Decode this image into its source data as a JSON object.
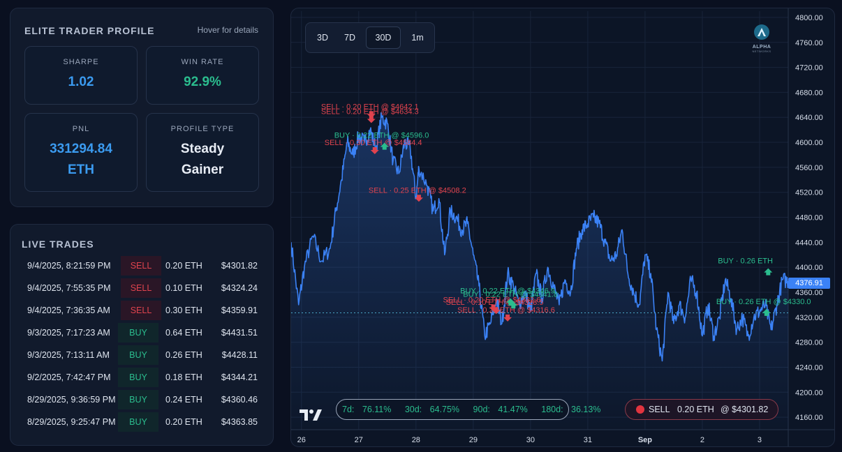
{
  "profile": {
    "title": "ELITE TRADER PROFILE",
    "hint": "Hover for details",
    "stats": [
      {
        "label": "SHARPE",
        "value": "1.02"
      },
      {
        "label": "WIN RATE",
        "value": "92.9%"
      },
      {
        "label": "PNL",
        "value": "331294.84 ETH",
        "value_line1": "331294.84",
        "value_line2": "ETH"
      },
      {
        "label": "PROFILE TYPE",
        "value": "Steady Gainer",
        "value_line1": "Steady",
        "value_line2": "Gainer"
      }
    ]
  },
  "trades": {
    "title": "LIVE TRADES",
    "rows": [
      {
        "time": "9/4/2025, 8:21:59 PM",
        "side": "SELL",
        "amount": "0.20 ETH",
        "price": "$4301.82"
      },
      {
        "time": "9/4/2025, 7:55:35 PM",
        "side": "SELL",
        "amount": "0.10 ETH",
        "price": "$4324.24"
      },
      {
        "time": "9/4/2025, 7:36:35 AM",
        "side": "SELL",
        "amount": "0.30 ETH",
        "price": "$4359.91"
      },
      {
        "time": "9/3/2025, 7:17:23 AM",
        "side": "BUY",
        "amount": "0.64 ETH",
        "price": "$4431.51"
      },
      {
        "time": "9/3/2025, 7:13:11 AM",
        "side": "BUY",
        "amount": "0.26 ETH",
        "price": "$4428.11"
      },
      {
        "time": "9/2/2025, 7:42:47 PM",
        "side": "BUY",
        "amount": "0.18 ETH",
        "price": "$4344.21"
      },
      {
        "time": "8/29/2025, 9:36:59 PM",
        "side": "BUY",
        "amount": "0.24 ETH",
        "price": "$4360.46"
      },
      {
        "time": "8/29/2025, 9:25:47 PM",
        "side": "BUY",
        "amount": "0.20 ETH",
        "price": "$4363.85"
      }
    ]
  },
  "chart": {
    "timeframes": [
      "3D",
      "7D",
      "30D",
      "1m"
    ],
    "active_timeframe": "30D",
    "logo": {
      "name": "ALPHA",
      "sub": "NETWORKS"
    },
    "win_rates": [
      {
        "label": "7d:",
        "value": "76.11%"
      },
      {
        "label": "30d:",
        "value": "64.75%"
      },
      {
        "label": "90d:",
        "value": "41.47%"
      },
      {
        "label": "180d:",
        "value": "36.13%"
      }
    ],
    "last_trade": {
      "side": "SELL",
      "amount": "0.20 ETH",
      "price": "@ $4301.82"
    },
    "current_price": "4376.91",
    "colors": {
      "line": "#3b82f6",
      "sell": "#e0434e",
      "buy": "#2bbd8e",
      "background": "#0c1526"
    }
  },
  "chart_data": {
    "type": "line",
    "ylim": [
      4140,
      4810
    ],
    "y_ticks": [
      "4800.00",
      "4760.00",
      "4720.00",
      "4680.00",
      "4640.00",
      "4600.00",
      "4560.00",
      "4520.00",
      "4480.00",
      "4440.00",
      "4400.00",
      "4360.00",
      "4320.00",
      "4280.00",
      "4240.00",
      "4200.00",
      "4160.00"
    ],
    "y_tick_values": [
      4800,
      4760,
      4720,
      4680,
      4640,
      4600,
      4560,
      4520,
      4480,
      4440,
      4400,
      4360,
      4320,
      4280,
      4240,
      4200,
      4160
    ],
    "x_ticks": [
      "26",
      "27",
      "28",
      "29",
      "30",
      "31",
      "Sep",
      "2",
      "3"
    ],
    "x_tick_days": [
      0,
      1,
      2,
      3,
      4,
      5,
      6,
      7,
      8
    ],
    "xlim_days": [
      -0.18,
      8.5
    ],
    "series": [
      {
        "x": [
          -0.18,
          -0.05,
          0.05,
          0.2,
          0.35,
          0.5,
          0.6,
          0.7,
          0.8,
          0.9,
          1.0,
          1.1,
          1.2,
          1.3,
          1.4,
          1.5,
          1.6,
          1.7,
          1.8,
          1.9,
          2.0,
          2.05,
          2.2,
          2.3,
          2.4,
          2.5,
          2.6,
          2.7,
          2.8,
          2.9,
          3.0,
          3.1,
          3.2,
          3.3,
          3.4,
          3.5,
          3.6,
          3.7,
          3.8,
          3.9,
          4.0,
          4.1,
          4.2,
          4.3,
          4.4,
          4.5,
          4.6,
          4.7,
          4.8,
          4.9,
          5.0,
          5.1,
          5.2,
          5.3,
          5.4,
          5.5,
          5.6,
          5.7,
          5.8,
          5.9,
          6.0,
          6.1,
          6.2,
          6.3,
          6.4,
          6.5,
          6.6,
          6.7,
          6.8,
          6.9,
          7.0,
          7.1,
          7.2,
          7.3,
          7.4,
          7.5,
          7.6,
          7.7,
          7.8,
          7.9,
          8.0,
          8.1,
          8.2,
          8.3,
          8.4,
          8.5
        ],
        "y": [
          4440,
          4340,
          4400,
          4450,
          4410,
          4430,
          4490,
          4540,
          4600,
          4580,
          4610,
          4600,
          4620,
          4590,
          4640,
          4630,
          4570,
          4550,
          4600,
          4590,
          4510,
          4560,
          4530,
          4490,
          4510,
          4420,
          4490,
          4480,
          4460,
          4470,
          4420,
          4370,
          4290,
          4310,
          4350,
          4310,
          4390,
          4370,
          4340,
          4360,
          4330,
          4390,
          4350,
          4400,
          4370,
          4340,
          4380,
          4360,
          4430,
          4460,
          4470,
          4480,
          4470,
          4440,
          4410,
          4420,
          4460,
          4390,
          4360,
          4340,
          4420,
          4390,
          4300,
          4250,
          4360,
          4310,
          4340,
          4320,
          4380,
          4360,
          4290,
          4340,
          4290,
          4320,
          4380,
          4350,
          4300,
          4320,
          4290,
          4320,
          4330,
          4340,
          4300,
          4340,
          4380,
          4378
        ]
      }
    ],
    "reference_line": 4327,
    "annotations": [
      {
        "text": "SELL · 0.20 ETH @ $4642.1",
        "side": "SELL",
        "x": 1.22,
        "y": 4642.1
      },
      {
        "text": "SELL · 0.20 ETH @ $4634.3",
        "side": "SELL",
        "x": 1.22,
        "y": 4634.3
      },
      {
        "text": "SELL · 0.30 ETH @ $4584.4",
        "side": "SELL",
        "x": 1.28,
        "y": 4584.4
      },
      {
        "text": "BUY · 0.22 ETH @ $4596.0",
        "side": "BUY",
        "x": 1.45,
        "y": 4596.0
      },
      {
        "text": "SELL · 0.25 ETH @ $4508.2",
        "side": "SELL",
        "x": 2.05,
        "y": 4508.2
      },
      {
        "text": "SELL · 0.20 ETH @ $4332.6",
        "side": "SELL",
        "x": 3.35,
        "y": 4332.6
      },
      {
        "text": "SELL · 0.10 ETH @ $4328.5",
        "side": "SELL",
        "x": 3.4,
        "y": 4328.5
      },
      {
        "text": "SELL · 0.20 ETH @ $4316.6",
        "side": "SELL",
        "x": 3.6,
        "y": 4316.6
      },
      {
        "text": "BUY · 0.22 ETH @ $4346.9",
        "side": "BUY",
        "x": 3.65,
        "y": 4346.9
      },
      {
        "text": "BUY · 0.22 ETH @ $4341.8",
        "side": "BUY",
        "x": 3.7,
        "y": 4341.8
      },
      {
        "text": "BUY · 0.26 ETH",
        "side": "BUY",
        "x": 8.15,
        "y": 4395.0
      },
      {
        "text": "BUY · 0.26 ETH @ $4330.0",
        "side": "BUY",
        "x": 8.12,
        "y": 4330.0
      }
    ]
  }
}
